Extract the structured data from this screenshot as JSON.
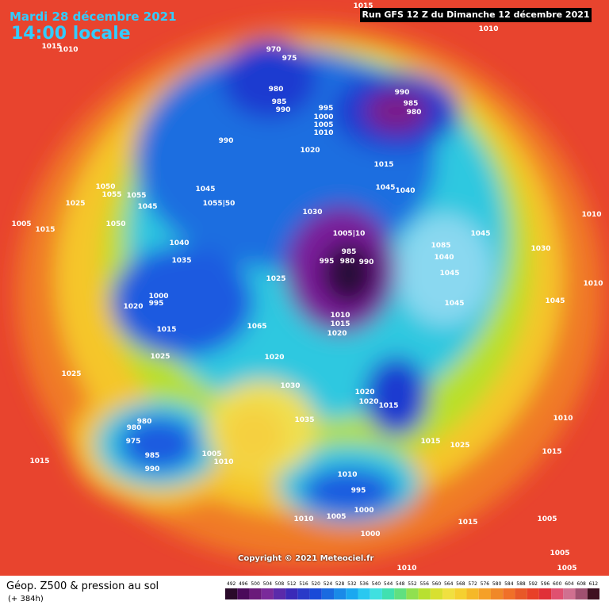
{
  "header": {
    "date": "Mardi 28 décembre 2021",
    "time": "14:00 locale",
    "run": "Run GFS 12 Z du Dimanche 12 décembre 2021"
  },
  "footer": {
    "title": "Géop. Z500 & pression au sol",
    "subtitle": "(+ 384h)",
    "copyright": "Copyright © 2021 Meteociel.fr"
  },
  "scale": {
    "labels": [
      492,
      496,
      500,
      504,
      508,
      512,
      516,
      520,
      524,
      528,
      532,
      536,
      540,
      544,
      548,
      552,
      556,
      560,
      564,
      568,
      572,
      576,
      580,
      584,
      588,
      592,
      596,
      600,
      604,
      608,
      612
    ]
  },
  "isobar_labels": [
    "970",
    "975",
    "980",
    "985",
    "990",
    "995",
    "1000",
    "1005",
    "1010",
    "990",
    "1020",
    "990",
    "985",
    "980",
    "1015",
    "1045",
    "1040",
    "1050",
    "1055",
    "1055",
    "1045",
    "1025",
    "1045",
    "1055|50",
    "1030",
    "1050",
    "1005",
    "1015",
    "1040",
    "1035",
    "1005|10",
    "985",
    "995",
    "980",
    "990",
    "1025",
    "1000",
    "995",
    "1020",
    "1015",
    "1010",
    "1015",
    "1020",
    "1065",
    "1020",
    "1025",
    "1030",
    "1025",
    "1020",
    "1020",
    "1015",
    "1035",
    "1015",
    "1025",
    "980",
    "980",
    "975",
    "985",
    "990",
    "1015",
    "1005",
    "1010",
    "1010",
    "995",
    "1000",
    "1010",
    "1005",
    "1000",
    "1085",
    "1040",
    "1045",
    "1045",
    "1045",
    "1030",
    "1010",
    "1045",
    "1010",
    "1015",
    "1010",
    "1005",
    "1015",
    "1005",
    "1005",
    "1010",
    "1015",
    "1010",
    "1015",
    "1010"
  ]
}
